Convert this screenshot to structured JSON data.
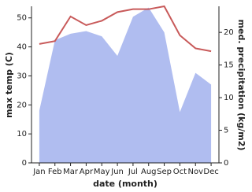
{
  "chart_data": {
    "type": "line-area",
    "x_label": "date (month)",
    "y_label": "max temp (C)",
    "y2_label": "med. precipitation (kg/m2)",
    "categories": [
      "Jan",
      "Feb",
      "Mar",
      "Apr",
      "May",
      "Jun",
      "Jul",
      "Aug",
      "Sep",
      "Oct",
      "Nov",
      "Dec"
    ],
    "series": [
      {
        "name": "max temp",
        "color": "#c85a5a",
        "axis": "y",
        "values": [
          41,
          42,
          50.5,
          47.5,
          49,
          52,
          53,
          53,
          54,
          44,
          39.5,
          38.5
        ]
      },
      {
        "name": "precipitation",
        "color": "#b0bdf0",
        "axis": "y2",
        "values": [
          8,
          18.8,
          19.8,
          20.2,
          19.4,
          16.4,
          22.4,
          23.8,
          20,
          7.8,
          13.8,
          12
        ]
      }
    ],
    "ylim": [
      0,
      54
    ],
    "yticks": [
      0,
      10,
      20,
      30,
      40,
      50
    ],
    "y2lim": [
      0,
      24
    ],
    "y2ticks": [
      0,
      5,
      10,
      15,
      20
    ]
  }
}
